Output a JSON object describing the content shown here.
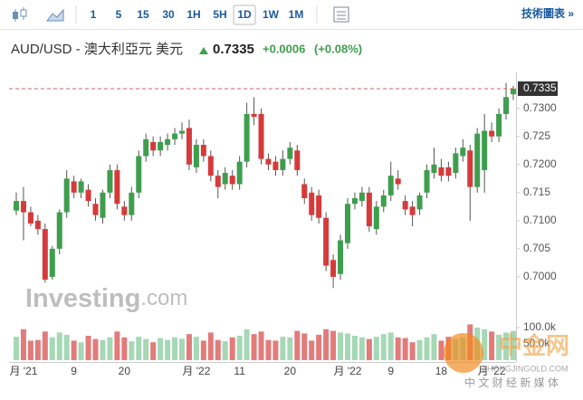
{
  "toolbar": {
    "buttons": [
      "1",
      "5",
      "15",
      "30",
      "1H",
      "5H",
      "1D",
      "1W",
      "1M"
    ],
    "selected": "1D",
    "link": "技術圖表 »"
  },
  "header": {
    "symbol": "AUD/USD - 澳大利亞元 美元",
    "price": "0.7335",
    "change": "+0.0006",
    "change_pct": "(+0.08%)"
  },
  "logo": {
    "main": "Investing",
    "suffix": ".com"
  },
  "watermark": {
    "name": "中金网",
    "site": "ZHONGJINGOLD.COM",
    "slogan": "中 文 财 经 新 媒 体"
  },
  "chart_data": {
    "type": "candlestick",
    "categories": [
      null,
      "月 '21",
      null,
      null,
      null,
      null,
      null,
      null,
      "9",
      null,
      null,
      null,
      null,
      null,
      null,
      "20",
      null,
      null,
      null,
      null,
      null,
      null,
      null,
      null,
      null,
      "月 '22",
      null,
      null,
      null,
      null,
      null,
      "11",
      null,
      null,
      null,
      null,
      null,
      null,
      "20",
      null,
      null,
      null,
      null,
      null,
      null,
      null,
      "月 '22",
      null,
      null,
      null,
      null,
      null,
      "9",
      null,
      null,
      null,
      null,
      null,
      null,
      "18",
      null,
      null,
      null,
      null,
      null,
      null,
      "月 '22",
      null,
      null,
      null
    ],
    "open": [
      0.7118,
      0.7135,
      0.7115,
      0.71,
      0.7085,
      0.7,
      0.705,
      0.7115,
      0.717,
      0.715,
      0.7155,
      0.713,
      0.7105,
      0.715,
      0.719,
      0.7125,
      0.711,
      0.715,
      0.7215,
      0.724,
      0.7225,
      0.7235,
      0.7245,
      0.7255,
      0.7265,
      0.7195,
      0.7235,
      0.7215,
      0.718,
      0.7165,
      0.718,
      0.7165,
      0.7205,
      0.729,
      0.729,
      0.721,
      0.7205,
      0.719,
      0.721,
      0.7225,
      0.7165,
      0.715,
      0.7145,
      0.7105,
      0.703,
      0.7005,
      0.706,
      0.713,
      0.7135,
      0.715,
      0.7085,
      0.7125,
      0.7145,
      0.7175,
      0.7135,
      0.7125,
      0.712,
      0.715,
      0.7185,
      0.7195,
      0.7195,
      0.7185,
      0.7215,
      0.7225,
      0.716,
      0.719,
      0.726,
      0.725,
      0.729,
      0.7325
    ],
    "high": [
      0.715,
      0.716,
      0.7125,
      0.711,
      0.7095,
      0.7055,
      0.712,
      0.719,
      0.718,
      0.7175,
      0.7165,
      0.714,
      0.7155,
      0.72,
      0.72,
      0.7135,
      0.716,
      0.7225,
      0.7255,
      0.725,
      0.725,
      0.7255,
      0.7265,
      0.7275,
      0.728,
      0.7245,
      0.7245,
      0.7225,
      0.719,
      0.7195,
      0.719,
      0.7215,
      0.731,
      0.732,
      0.73,
      0.722,
      0.7215,
      0.7225,
      0.724,
      0.7235,
      0.7175,
      0.716,
      0.7155,
      0.7115,
      0.704,
      0.7075,
      0.714,
      0.715,
      0.716,
      0.716,
      0.7135,
      0.7155,
      0.7205,
      0.719,
      0.7145,
      0.7135,
      0.715,
      0.72,
      0.723,
      0.721,
      0.7205,
      0.723,
      0.7245,
      0.7235,
      0.7265,
      0.729,
      0.7275,
      0.73,
      0.7345,
      0.734
    ],
    "low": [
      0.711,
      0.7065,
      0.709,
      0.7075,
      0.699,
      0.6995,
      0.704,
      0.7105,
      0.714,
      0.714,
      0.7125,
      0.71,
      0.7095,
      0.714,
      0.712,
      0.71,
      0.71,
      0.714,
      0.7205,
      0.7215,
      0.7215,
      0.7225,
      0.7235,
      0.7245,
      0.719,
      0.7185,
      0.7205,
      0.717,
      0.714,
      0.7155,
      0.7155,
      0.7155,
      0.7195,
      0.727,
      0.72,
      0.719,
      0.718,
      0.718,
      0.72,
      0.718,
      0.713,
      0.71,
      0.7095,
      0.701,
      0.698,
      0.6995,
      0.705,
      0.712,
      0.7125,
      0.708,
      0.7075,
      0.7115,
      0.7135,
      0.7155,
      0.711,
      0.709,
      0.711,
      0.714,
      0.7175,
      0.717,
      0.717,
      0.7175,
      0.7205,
      0.71,
      0.715,
      0.715,
      0.724,
      0.724,
      0.728,
      0.7315
    ],
    "close": [
      0.7135,
      0.7115,
      0.7095,
      0.7085,
      0.6995,
      0.705,
      0.7115,
      0.7175,
      0.715,
      0.717,
      0.7135,
      0.711,
      0.715,
      0.719,
      0.713,
      0.711,
      0.715,
      0.7215,
      0.7245,
      0.7225,
      0.724,
      0.7245,
      0.7255,
      0.726,
      0.72,
      0.7235,
      0.7215,
      0.718,
      0.716,
      0.7185,
      0.7165,
      0.7205,
      0.729,
      0.7285,
      0.721,
      0.72,
      0.719,
      0.721,
      0.723,
      0.719,
      0.714,
      0.711,
      0.7105,
      0.702,
      0.7,
      0.7065,
      0.713,
      0.714,
      0.715,
      0.709,
      0.7125,
      0.7145,
      0.718,
      0.7165,
      0.712,
      0.711,
      0.7145,
      0.719,
      0.72,
      0.718,
      0.718,
      0.722,
      0.723,
      0.716,
      0.7255,
      0.726,
      0.725,
      0.729,
      0.732,
      0.7335
    ],
    "volume": [
      72000,
      95000,
      60000,
      62000,
      88000,
      70000,
      85000,
      78000,
      60000,
      55000,
      75000,
      65000,
      62000,
      70000,
      88000,
      70000,
      58000,
      72000,
      65000,
      55000,
      68000,
      62000,
      70000,
      66000,
      80000,
      72000,
      60000,
      85000,
      62000,
      58000,
      70000,
      75000,
      95000,
      80000,
      88000,
      62000,
      60000,
      72000,
      70000,
      90000,
      82000,
      60000,
      78000,
      95000,
      90000,
      85000,
      82000,
      75000,
      70000,
      65000,
      72000,
      80000,
      85000,
      70000,
      68000,
      55000,
      62000,
      70000,
      80000,
      60000,
      72000,
      65000,
      70000,
      110000,
      100000,
      95000,
      88000,
      78000,
      85000,
      90000
    ],
    "last_price": 0.7335,
    "ylim": [
      0.6937,
      0.7364
    ],
    "yticks": [
      {
        "value": 0.7,
        "label": "0.7000"
      },
      0.705,
      {
        "value": 0.71,
        "label": "0.7100"
      },
      0.715,
      {
        "value": 0.72,
        "label": "0.7200"
      },
      0.725,
      {
        "value": 0.73,
        "label": "0.7300"
      }
    ],
    "volume_lim": [
      0,
      150000
    ],
    "volume_ticks": [
      {
        "value": 100000,
        "label": "100.0k"
      },
      {
        "value": 50000,
        "label": "50.0k"
      }
    ],
    "up_color": "#3e9e4e",
    "down_color": "#d63a3a",
    "volume_up_color": "#a6d8b6",
    "volume_down_color": "#e37b7b"
  }
}
